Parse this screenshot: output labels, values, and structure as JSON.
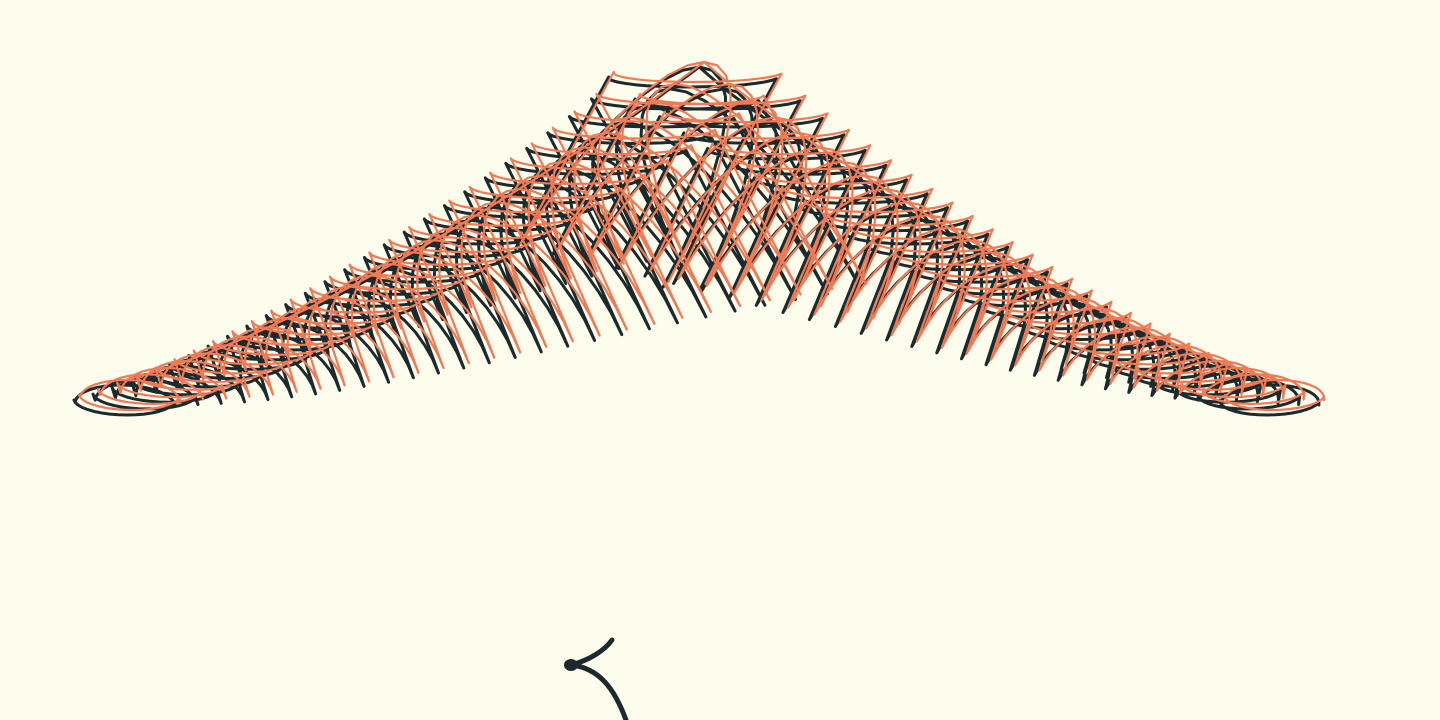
{
  "artwork": {
    "subject": "harmonograph-spirograph",
    "colors": {
      "background": "#fdfded",
      "ink_dark": "#1c2a2e",
      "ink_coral": "#f07a56"
    },
    "loops": 54
  }
}
